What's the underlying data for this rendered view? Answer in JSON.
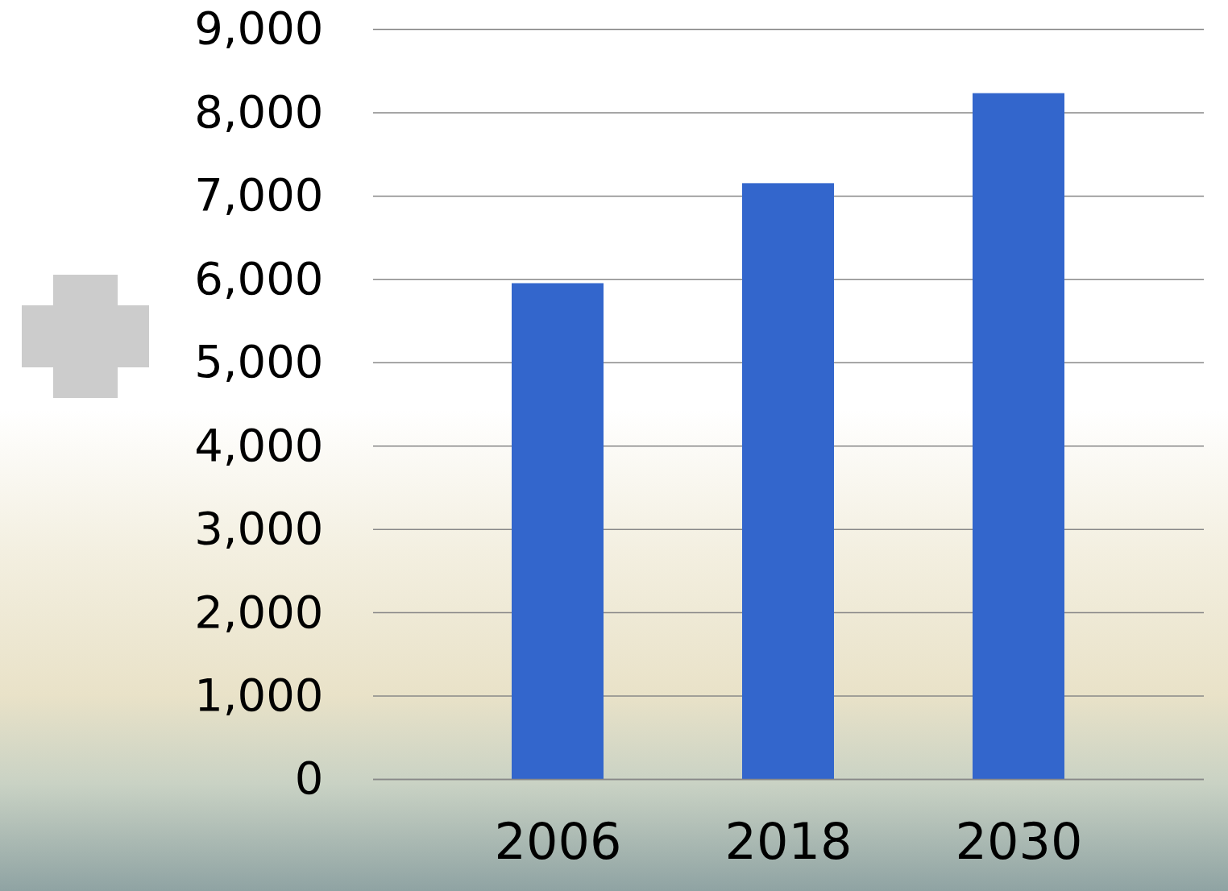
{
  "chart_data": {
    "type": "bar",
    "categories": [
      "2006",
      "2018",
      "2030"
    ],
    "values": [
      5950,
      7150,
      8230
    ],
    "color": "#3366cc",
    "ylim": [
      0,
      9000
    ],
    "yticks": [
      0,
      {
        "value": 1000,
        "label": "1,000"
      },
      {
        "value": 2000,
        "label": "2,000"
      },
      {
        "value": 3000,
        "label": "3,000"
      },
      {
        "value": 4000,
        "label": "4,000"
      },
      {
        "value": 5000,
        "label": "5,000"
      },
      {
        "value": 6000,
        "label": "6,000"
      },
      {
        "value": 7000,
        "label": "7,000"
      },
      {
        "value": 8000,
        "label": "8,000"
      },
      {
        "value": 9000,
        "label": "9,000"
      }
    ],
    "grid": true
  }
}
